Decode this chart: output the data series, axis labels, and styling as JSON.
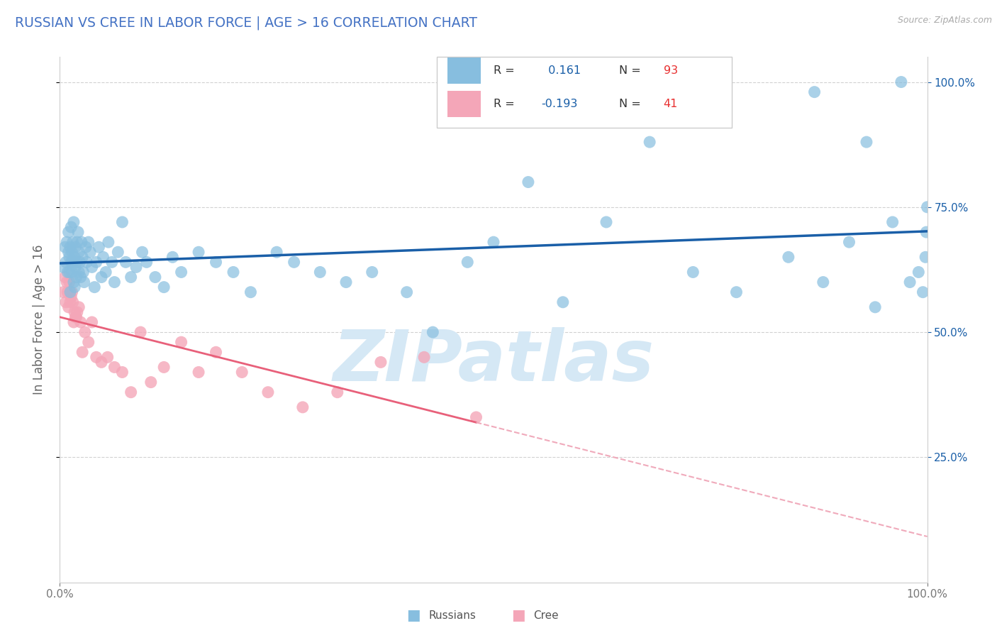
{
  "title": "RUSSIAN VS CREE IN LABOR FORCE | AGE > 16 CORRELATION CHART",
  "source_text": "Source: ZipAtlas.com",
  "ylabel": "In Labor Force | Age > 16",
  "xlim": [
    0.0,
    1.0
  ],
  "ylim": [
    0.0,
    1.05
  ],
  "ytick_positions": [
    0.25,
    0.5,
    0.75,
    1.0
  ],
  "ytick_labels": [
    "25.0%",
    "50.0%",
    "75.0%",
    "100.0%"
  ],
  "russian_R": 0.161,
  "russian_N": 93,
  "cree_R": -0.193,
  "cree_N": 41,
  "russian_color": "#87BEDF",
  "cree_color": "#F4A6B8",
  "trend_russian_color": "#1A5FA8",
  "trend_cree_solid_color": "#E8607A",
  "trend_cree_dashed_color": "#F0AABB",
  "background_color": "#ffffff",
  "grid_color": "#cccccc",
  "watermark_color": "#D5E8F5",
  "title_color": "#4472c4",
  "legend_R_color": "#1A5FA8",
  "legend_N_color": "#E83030",
  "russian_x": [
    0.004,
    0.006,
    0.007,
    0.008,
    0.009,
    0.01,
    0.01,
    0.011,
    0.011,
    0.012,
    0.012,
    0.013,
    0.013,
    0.014,
    0.014,
    0.015,
    0.015,
    0.016,
    0.016,
    0.017,
    0.017,
    0.018,
    0.018,
    0.019,
    0.02,
    0.02,
    0.021,
    0.022,
    0.022,
    0.023,
    0.024,
    0.025,
    0.026,
    0.027,
    0.028,
    0.03,
    0.031,
    0.033,
    0.035,
    0.037,
    0.04,
    0.042,
    0.045,
    0.048,
    0.05,
    0.053,
    0.056,
    0.06,
    0.063,
    0.067,
    0.072,
    0.076,
    0.082,
    0.088,
    0.095,
    0.1,
    0.11,
    0.12,
    0.13,
    0.14,
    0.16,
    0.18,
    0.2,
    0.22,
    0.25,
    0.27,
    0.3,
    0.33,
    0.36,
    0.4,
    0.43,
    0.47,
    0.5,
    0.54,
    0.58,
    0.63,
    0.68,
    0.73,
    0.78,
    0.84,
    0.88,
    0.91,
    0.94,
    0.96,
    0.98,
    0.99,
    0.995,
    0.998,
    0.999,
    1.0,
    0.87,
    0.93,
    0.97
  ],
  "russian_y": [
    0.63,
    0.67,
    0.64,
    0.68,
    0.62,
    0.66,
    0.7,
    0.65,
    0.62,
    0.58,
    0.67,
    0.64,
    0.71,
    0.62,
    0.66,
    0.68,
    0.64,
    0.6,
    0.72,
    0.65,
    0.59,
    0.67,
    0.63,
    0.61,
    0.68,
    0.64,
    0.7,
    0.62,
    0.66,
    0.64,
    0.61,
    0.68,
    0.65,
    0.62,
    0.6,
    0.67,
    0.64,
    0.68,
    0.66,
    0.63,
    0.59,
    0.64,
    0.67,
    0.61,
    0.65,
    0.62,
    0.68,
    0.64,
    0.6,
    0.66,
    0.72,
    0.64,
    0.61,
    0.63,
    0.66,
    0.64,
    0.61,
    0.59,
    0.65,
    0.62,
    0.66,
    0.64,
    0.62,
    0.58,
    0.66,
    0.64,
    0.62,
    0.6,
    0.62,
    0.58,
    0.5,
    0.64,
    0.68,
    0.8,
    0.56,
    0.72,
    0.88,
    0.62,
    0.58,
    0.65,
    0.6,
    0.68,
    0.55,
    0.72,
    0.6,
    0.62,
    0.58,
    0.65,
    0.7,
    0.75,
    0.98,
    0.88,
    1.0
  ],
  "cree_x": [
    0.004,
    0.006,
    0.007,
    0.008,
    0.009,
    0.01,
    0.011,
    0.012,
    0.013,
    0.014,
    0.015,
    0.016,
    0.017,
    0.018,
    0.019,
    0.02,
    0.022,
    0.024,
    0.026,
    0.029,
    0.033,
    0.037,
    0.042,
    0.048,
    0.055,
    0.063,
    0.072,
    0.082,
    0.093,
    0.105,
    0.12,
    0.14,
    0.16,
    0.18,
    0.21,
    0.24,
    0.28,
    0.32,
    0.37,
    0.42,
    0.48
  ],
  "cree_y": [
    0.58,
    0.61,
    0.56,
    0.6,
    0.58,
    0.55,
    0.6,
    0.56,
    0.57,
    0.58,
    0.56,
    0.52,
    0.54,
    0.53,
    0.53,
    0.54,
    0.55,
    0.52,
    0.46,
    0.5,
    0.48,
    0.52,
    0.45,
    0.44,
    0.45,
    0.43,
    0.42,
    0.38,
    0.5,
    0.4,
    0.43,
    0.48,
    0.42,
    0.46,
    0.42,
    0.38,
    0.35,
    0.38,
    0.44,
    0.45,
    0.33
  ]
}
